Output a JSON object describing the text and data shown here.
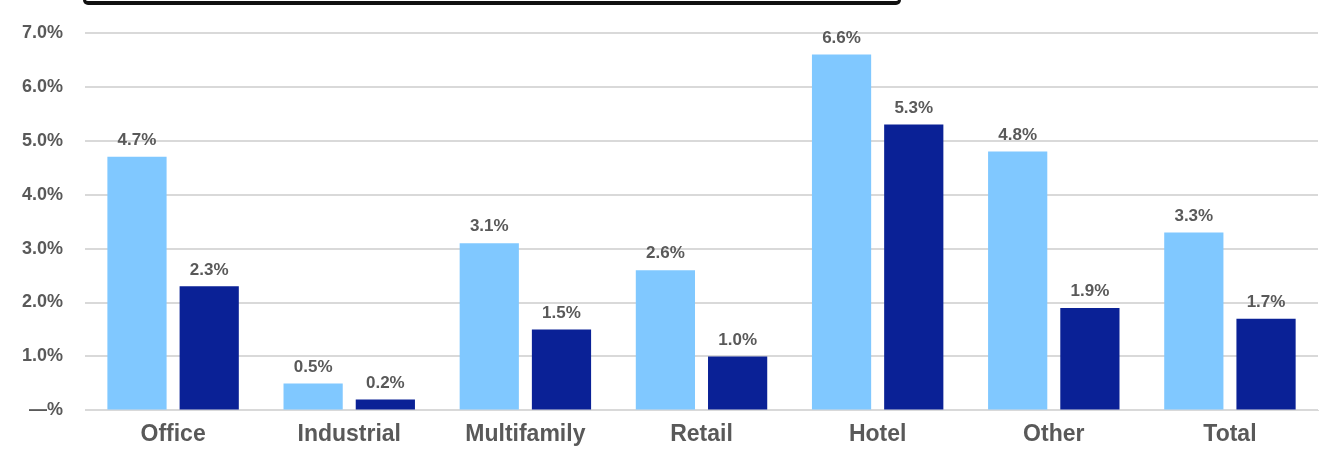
{
  "chart_data": {
    "type": "bar",
    "categories": [
      "Office",
      "Industrial",
      "Multifamily",
      "Retail",
      "Hotel",
      "Other",
      "Total"
    ],
    "series": [
      {
        "color": "#80c8ff",
        "values": [
          4.7,
          0.5,
          3.1,
          2.6,
          6.6,
          4.8,
          3.3
        ],
        "value_labels": [
          "4.7%",
          "0.5%",
          "3.1%",
          "2.6%",
          "6.6%",
          "4.8%",
          "3.3%"
        ]
      },
      {
        "color": "#0a2196",
        "values": [
          2.3,
          0.2,
          1.5,
          1.0,
          5.3,
          1.9,
          1.7
        ],
        "value_labels": [
          "2.3%",
          "0.2%",
          "1.5%",
          "1.0%",
          "5.3%",
          "1.9%",
          "1.7%"
        ]
      }
    ],
    "ylim": [
      0,
      7
    ],
    "yticks": [
      {
        "value": 0,
        "label": "—%"
      },
      {
        "value": 1,
        "label": "1.0%"
      },
      {
        "value": 2,
        "label": "2.0%"
      },
      {
        "value": 3,
        "label": "3.0%"
      },
      {
        "value": 4,
        "label": "4.0%"
      },
      {
        "value": 5,
        "label": "5.0%"
      },
      {
        "value": 6,
        "label": "6.0%"
      },
      {
        "value": 7,
        "label": "7.0%"
      }
    ],
    "grid": "y",
    "legend": false
  }
}
